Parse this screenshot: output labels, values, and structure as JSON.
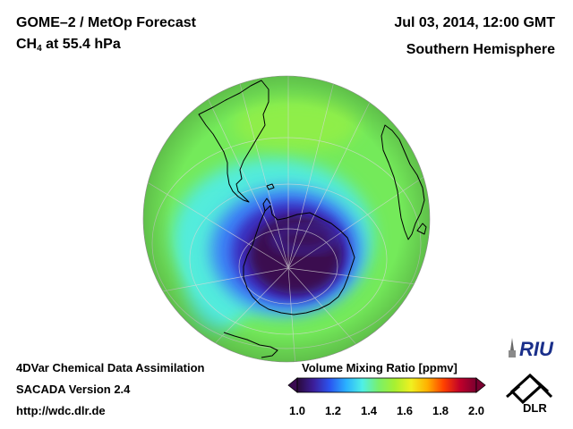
{
  "header": {
    "title_line1": "GOME–2 / MetOp Forecast",
    "title_species": "CH",
    "title_species_sub": "4",
    "title_level": " at 55.4 hPa",
    "date": "Jul 03, 2014, 12:00 GMT",
    "hemisphere": "Southern Hemisphere"
  },
  "footer": {
    "line1": "4DVar Chemical Data Assimilation",
    "line2": "SACADA Version 2.4",
    "line3": "http://wdc.dlr.de"
  },
  "colorbar": {
    "title": "Volume Mixing Ratio [ppmv]",
    "ticks": [
      "1.0",
      "1.2",
      "1.4",
      "1.6",
      "1.8",
      "2.0"
    ],
    "min": 1.0,
    "max": 2.0,
    "colors": [
      "#2a0a3a",
      "#3c1e9a",
      "#2a55f0",
      "#2ab0ff",
      "#4ff0e6",
      "#7af06a",
      "#a8f030",
      "#f0f020",
      "#ffb000",
      "#ff4000",
      "#c0002a",
      "#7a0030"
    ]
  },
  "map_colors": {
    "background_green": "#74ea5a",
    "cyan_ring": "#52ecdc",
    "blue": "#3b7cf6",
    "deep_blue": "#3a2ec0",
    "core": "#3a0a50",
    "coast": "#000000"
  },
  "logos": {
    "riu_text": "RIU",
    "dlr_text": "DLR"
  }
}
